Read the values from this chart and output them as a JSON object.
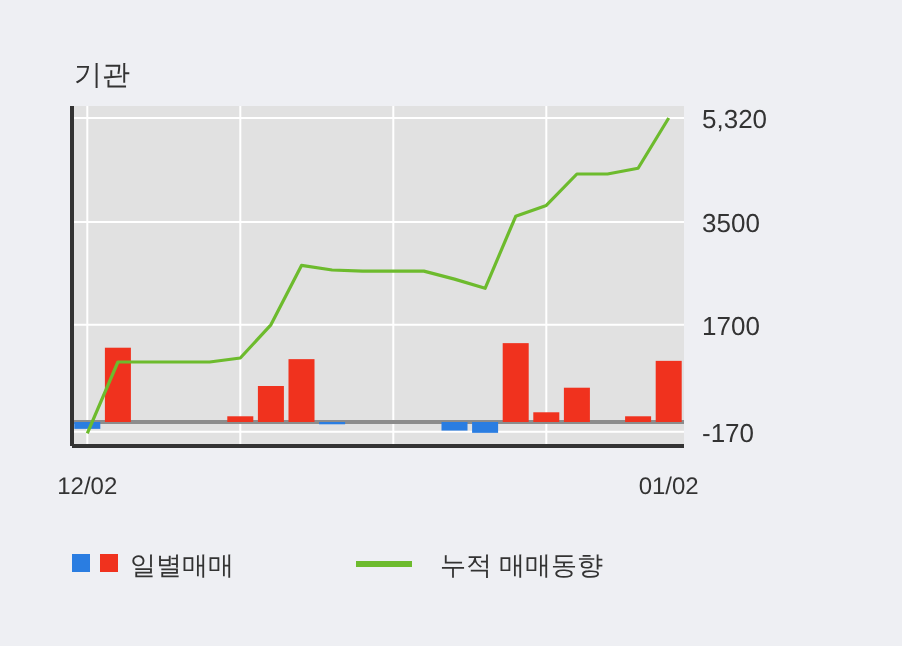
{
  "chart_data": {
    "type": "bar",
    "title": "기관",
    "categories": [
      "12/02",
      null,
      null,
      null,
      null,
      null,
      null,
      null,
      null,
      null,
      null,
      null,
      null,
      null,
      null,
      null,
      null,
      null,
      null,
      "01/02"
    ],
    "series": [
      {
        "name": "일별매매",
        "values": [
          -120,
          1300,
          0,
          0,
          0,
          100,
          630,
          1100,
          -40,
          0,
          0,
          0,
          -150,
          -190,
          1380,
          170,
          600,
          0,
          100,
          1070
        ],
        "colors": [
          "#2a7de1",
          "#f0321e",
          "#f0321e",
          "#f0321e",
          "#f0321e",
          "#f0321e",
          "#f0321e",
          "#f0321e",
          "#2a7de1",
          "#f0321e",
          "#f0321e",
          "#f0321e",
          "#2a7de1",
          "#2a7de1",
          "#f0321e",
          "#f0321e",
          "#f0321e",
          "#f0321e",
          "#f0321e",
          "#f0321e"
        ]
      },
      {
        "name": "누적 매매동향",
        "type": "line",
        "color": "#6dbb2d",
        "values": [
          -200,
          1050,
          1050,
          1050,
          1050,
          1120,
          1700,
          2740,
          2660,
          2640,
          2640,
          2640,
          2500,
          2340,
          3600,
          3790,
          4340,
          4340,
          4440,
          5320
        ]
      }
    ],
    "ylim": [
      -420,
      5530
    ],
    "yticks": [
      {
        "value": 5320,
        "label": "5,320"
      },
      3500,
      1700,
      -170
    ],
    "ref_lines": [
      {
        "axis": "y",
        "value": 0,
        "color": "#8c8c8c"
      }
    ],
    "grid": true,
    "legend": "bottom"
  }
}
